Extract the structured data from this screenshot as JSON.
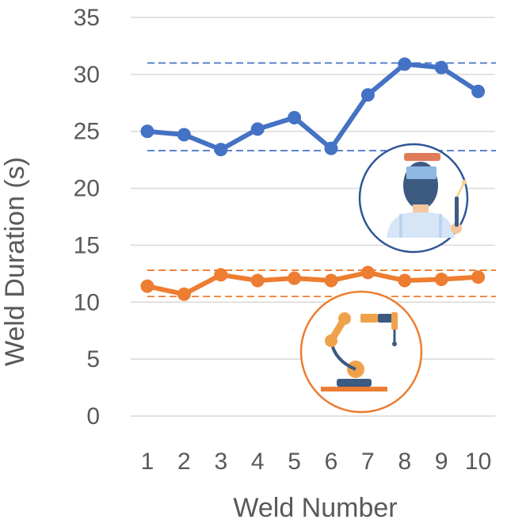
{
  "chart_data": {
    "type": "line",
    "title": "",
    "xlabel": "Weld Number",
    "ylabel": "Weld Duration (s)",
    "categories": [
      "1",
      "2",
      "3",
      "4",
      "5",
      "6",
      "7",
      "8",
      "9",
      "10"
    ],
    "ylim": [
      0,
      35
    ],
    "yticks": [
      0,
      5,
      10,
      15,
      20,
      25,
      30,
      35
    ],
    "grid": "horizontal",
    "legend": "none",
    "series": [
      {
        "color": "#4472C4",
        "values": [
          25.0,
          24.7,
          23.4,
          25.2,
          26.2,
          23.5,
          28.2,
          30.9,
          30.6,
          28.5
        ]
      },
      {
        "color": "#ED7D31",
        "values": [
          11.4,
          10.7,
          12.4,
          11.9,
          12.1,
          11.9,
          12.6,
          11.9,
          12.0,
          12.2
        ]
      }
    ],
    "reference_lines": [
      {
        "color": "#4472C4",
        "style": "dashed",
        "value": 31.0
      },
      {
        "color": "#4472C4",
        "style": "dashed",
        "value": 23.3
      },
      {
        "color": "#ED7D31",
        "style": "dashed",
        "value": 12.8
      },
      {
        "color": "#ED7D31",
        "style": "dashed",
        "value": 10.5
      }
    ],
    "icons": [
      {
        "name": "welder-icon",
        "border_color": "#2F5597"
      },
      {
        "name": "robot-arm-icon",
        "border_color": "#ED7D31"
      }
    ]
  }
}
